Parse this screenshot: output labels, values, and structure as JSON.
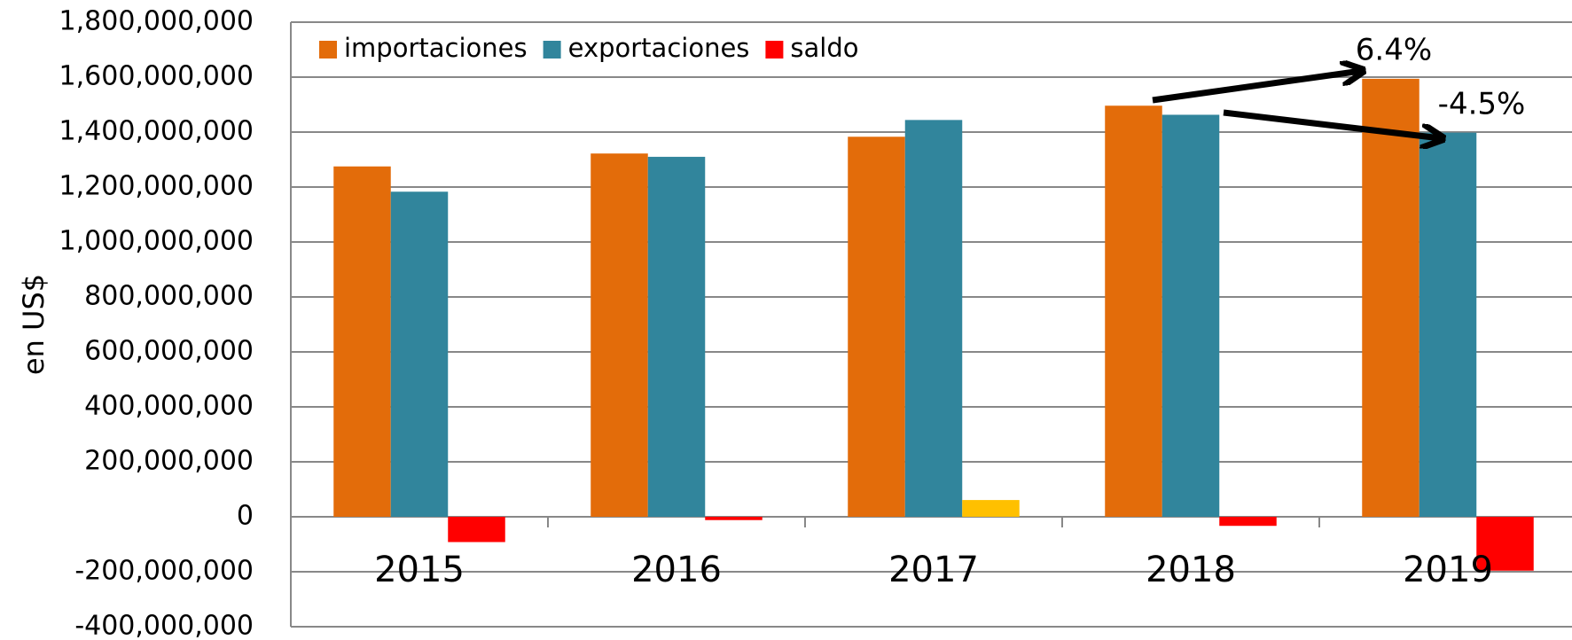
{
  "chart_data": {
    "type": "bar",
    "categories": [
      "2015",
      "2016",
      "2017",
      "2018",
      "2019"
    ],
    "series": [
      {
        "name": "importaciones",
        "color": "#e36c0a",
        "values": [
          1275000000,
          1322000000,
          1383000000,
          1496000000,
          1594000000
        ]
      },
      {
        "name": "exportaciones",
        "color": "#31859c",
        "values": [
          1183000000,
          1310000000,
          1444000000,
          1463000000,
          1398000000
        ]
      },
      {
        "name": "saldo",
        "color": "#ff0000",
        "colors": [
          "#ff0000",
          "#ff0000",
          "#ffc000",
          "#ff0000",
          "#ff0000"
        ],
        "values": [
          -92000000,
          -12000000,
          61000000,
          -33000000,
          -196000000
        ]
      }
    ],
    "ylabel": "en US$",
    "ylim": [
      -400000000,
      1800000000
    ],
    "yticks": [
      {
        "value": -400000000,
        "label": "-400,000,000"
      },
      {
        "value": -200000000,
        "label": "-200,000,000"
      },
      0,
      {
        "value": 200000000,
        "label": "200,000,000"
      },
      {
        "value": 400000000,
        "label": "400,000,000"
      },
      {
        "value": 600000000,
        "label": "600,000,000"
      },
      {
        "value": 800000000,
        "label": "800,000,000"
      },
      {
        "value": 1000000000,
        "label": "1,000,000,000"
      },
      {
        "value": 1200000000,
        "label": "1,200,000,000"
      },
      {
        "value": 1400000000,
        "label": "1,400,000,000"
      },
      {
        "value": 1600000000,
        "label": "1,600,000,000"
      },
      {
        "value": 1800000000,
        "label": "1,800,000,000"
      }
    ],
    "grid": true,
    "legend": "top-left",
    "annotations": [
      "6.4%",
      "-4.5%"
    ]
  }
}
